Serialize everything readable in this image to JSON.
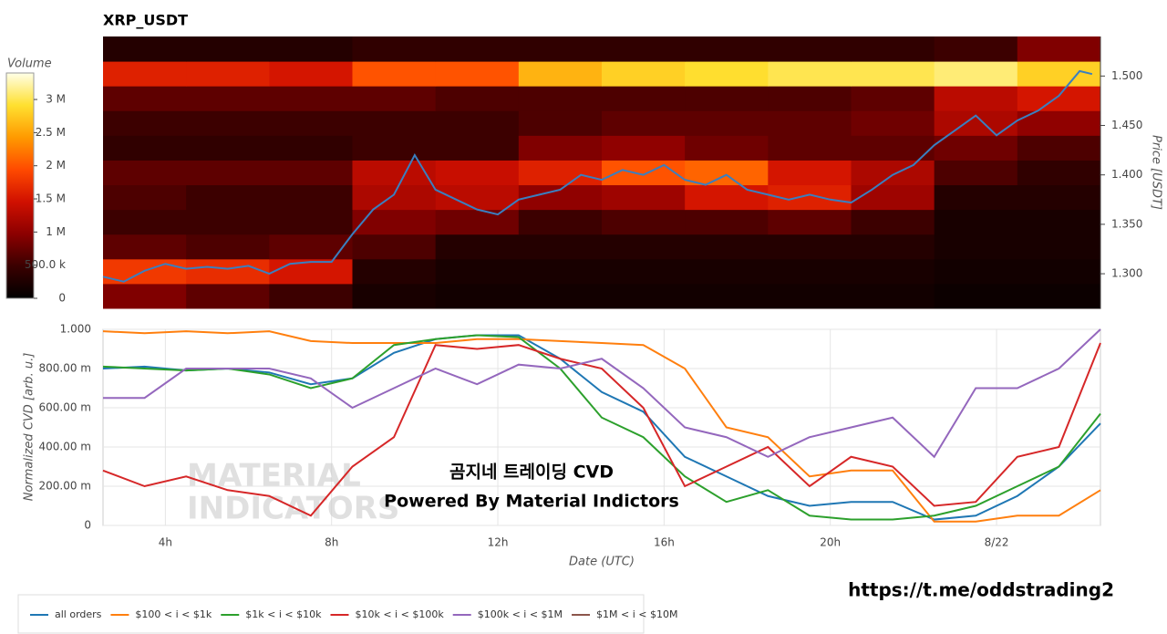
{
  "chart_data": [
    {
      "type": "heatmap",
      "title": "XRP_USDT",
      "ylabel": "Price [USDT]",
      "xlim": [
        2.5,
        26.5
      ],
      "ylim": [
        1.265,
        1.54
      ],
      "yticks": [
        {
          "value": 1.3,
          "label": "1.300"
        },
        {
          "value": 1.35,
          "label": "1.350"
        },
        {
          "value": 1.4,
          "label": "1.400"
        },
        {
          "value": 1.45,
          "label": "1.450"
        },
        {
          "value": 1.5,
          "label": "1.500"
        }
      ],
      "xbins": [
        2.5,
        4.5,
        6.5,
        8.5,
        10.5,
        12.5,
        14.5,
        16.5,
        18.5,
        20.5,
        22.5,
        24.5,
        26.5
      ],
      "ybins": [
        1.265,
        1.29,
        1.315,
        1.34,
        1.365,
        1.39,
        1.415,
        1.44,
        1.465,
        1.49,
        1.515,
        1.54
      ],
      "z": [
        [
          900000,
          700000,
          500000,
          200000,
          150000,
          150000,
          150000,
          150000,
          150000,
          150000,
          100000,
          100000
        ],
        [
          1800000,
          1700000,
          1500000,
          300000,
          200000,
          200000,
          200000,
          200000,
          200000,
          200000,
          150000,
          150000
        ],
        [
          700000,
          600000,
          700000,
          600000,
          300000,
          300000,
          300000,
          300000,
          300000,
          300000,
          200000,
          200000
        ],
        [
          500000,
          500000,
          500000,
          900000,
          800000,
          500000,
          600000,
          600000,
          700000,
          500000,
          200000,
          200000
        ],
        [
          600000,
          500000,
          500000,
          1200000,
          1300000,
          1000000,
          1100000,
          1500000,
          1600000,
          1100000,
          300000,
          300000
        ],
        [
          700000,
          700000,
          700000,
          1300000,
          1400000,
          1600000,
          2000000,
          2100000,
          1500000,
          1200000,
          600000,
          400000
        ],
        [
          400000,
          400000,
          400000,
          500000,
          500000,
          900000,
          1000000,
          800000,
          700000,
          700000,
          800000,
          600000
        ],
        [
          500000,
          500000,
          500000,
          500000,
          500000,
          600000,
          700000,
          700000,
          700000,
          800000,
          1200000,
          1000000
        ],
        [
          700000,
          700000,
          700000,
          700000,
          600000,
          600000,
          600000,
          600000,
          600000,
          700000,
          1300000,
          1500000
        ],
        [
          1600000,
          1600000,
          1500000,
          2000000,
          2000000,
          2600000,
          2800000,
          2900000,
          3000000,
          3000000,
          3100000,
          2800000
        ],
        [
          300000,
          300000,
          300000,
          400000,
          400000,
          400000,
          400000,
          400000,
          400000,
          400000,
          500000,
          900000
        ]
      ],
      "colorbar_title": "Volume",
      "zlim": [
        0,
        3400000
      ],
      "zticks": [
        0,
        {
          "value": 500000,
          "label": "500.0 k"
        },
        {
          "value": 1000000,
          "label": "1 M"
        },
        {
          "value": 1500000,
          "label": "1.5 M"
        },
        {
          "value": 2000000,
          "label": "2 M"
        },
        {
          "value": 2500000,
          "label": "2.5 M"
        },
        {
          "value": 3000000,
          "label": "3 M"
        }
      ],
      "colorscale": [
        "#000000",
        "#3a0000",
        "#8c0000",
        "#d01000",
        "#ff4a00",
        "#ff9a00",
        "#ffe030",
        "#ffffe8"
      ],
      "line": {
        "color": "#3a7fc0",
        "x": [
          2.5,
          3,
          3.5,
          4,
          4.5,
          5,
          5.5,
          6,
          6.5,
          7,
          7.5,
          8,
          8.5,
          9,
          9.5,
          10,
          10.5,
          11,
          11.5,
          12,
          12.5,
          13,
          13.5,
          14,
          14.5,
          15,
          15.5,
          16,
          16.5,
          17,
          17.5,
          18,
          18.5,
          19,
          19.5,
          20,
          20.5,
          21,
          21.5,
          22,
          22.5,
          23,
          23.5,
          24,
          24.5,
          25,
          25.5,
          26,
          26.3
        ],
        "values": [
          1.297,
          1.292,
          1.303,
          1.31,
          1.305,
          1.307,
          1.305,
          1.308,
          1.3,
          1.31,
          1.312,
          1.312,
          1.34,
          1.365,
          1.38,
          1.42,
          1.385,
          1.375,
          1.365,
          1.36,
          1.375,
          1.38,
          1.385,
          1.4,
          1.395,
          1.405,
          1.4,
          1.41,
          1.395,
          1.39,
          1.4,
          1.385,
          1.38,
          1.375,
          1.38,
          1.375,
          1.372,
          1.385,
          1.4,
          1.41,
          1.43,
          1.445,
          1.46,
          1.44,
          1.455,
          1.465,
          1.48,
          1.505,
          1.502
        ]
      }
    },
    {
      "type": "line",
      "xlabel": "Date (UTC)",
      "ylabel": "Normalized CVD [arb. u.]",
      "xlim": [
        2.5,
        26.5
      ],
      "ylim": [
        0,
        1
      ],
      "xticks": [
        {
          "value": 4,
          "label": "4h"
        },
        {
          "value": 8,
          "label": "8h"
        },
        {
          "value": 12,
          "label": "12h"
        },
        {
          "value": 16,
          "label": "16h"
        },
        {
          "value": 20,
          "label": "20h"
        },
        {
          "value": 24,
          "label": "8/22"
        }
      ],
      "yticks": [
        0,
        {
          "value": 0.2,
          "label": "200.00 m"
        },
        {
          "value": 0.4,
          "label": "400.00 m"
        },
        {
          "value": 0.6,
          "label": "600.00 m"
        },
        {
          "value": 0.8,
          "label": "800.00 m"
        },
        {
          "value": 1,
          "label": "1.000"
        }
      ],
      "grid": true,
      "x": [
        2.5,
        3.5,
        4.5,
        5.5,
        6.5,
        7.5,
        8.5,
        9.5,
        10.5,
        11.5,
        12.5,
        13.5,
        14.5,
        15.5,
        16.5,
        17.5,
        18.5,
        19.5,
        20.5,
        21.5,
        22.5,
        23.5,
        24.5,
        25.5,
        26.5
      ],
      "series": [
        {
          "name": "all orders",
          "color": "#1f77b4",
          "values": [
            0.8,
            0.81,
            0.79,
            0.8,
            0.78,
            0.72,
            0.75,
            0.88,
            0.95,
            0.97,
            0.97,
            0.85,
            0.68,
            0.58,
            0.35,
            0.25,
            0.15,
            0.1,
            0.12,
            0.12,
            0.03,
            0.05,
            0.15,
            0.3,
            0.52
          ]
        },
        {
          "name": "$100 < i < $1k",
          "color": "#ff7f0e",
          "values": [
            0.99,
            0.98,
            0.99,
            0.98,
            0.99,
            0.94,
            0.93,
            0.93,
            0.93,
            0.95,
            0.95,
            0.94,
            0.93,
            0.92,
            0.8,
            0.5,
            0.45,
            0.25,
            0.28,
            0.28,
            0.02,
            0.02,
            0.05,
            0.05,
            0.18
          ]
        },
        {
          "name": "$1k < i < $10k",
          "color": "#2ca02c",
          "values": [
            0.81,
            0.8,
            0.79,
            0.8,
            0.77,
            0.7,
            0.75,
            0.92,
            0.95,
            0.97,
            0.96,
            0.8,
            0.55,
            0.45,
            0.25,
            0.12,
            0.18,
            0.05,
            0.03,
            0.03,
            0.05,
            0.1,
            0.2,
            0.3,
            0.57
          ]
        },
        {
          "name": "$10k < i < $100k",
          "color": "#d62728",
          "values": [
            0.28,
            0.2,
            0.25,
            0.18,
            0.15,
            0.05,
            0.3,
            0.45,
            0.92,
            0.9,
            0.92,
            0.85,
            0.8,
            0.6,
            0.2,
            0.3,
            0.4,
            0.2,
            0.35,
            0.3,
            0.1,
            0.12,
            0.35,
            0.4,
            0.93
          ]
        },
        {
          "name": "$100k < i < $1M",
          "color": "#9467bd",
          "values": [
            0.65,
            0.65,
            0.8,
            0.8,
            0.8,
            0.75,
            0.6,
            0.7,
            0.8,
            0.72,
            0.82,
            0.8,
            0.85,
            0.7,
            0.5,
            0.45,
            0.35,
            0.45,
            0.5,
            0.55,
            0.35,
            0.7,
            0.7,
            0.8,
            1
          ]
        },
        {
          "name": "$1M < i < $10M",
          "color": "#8c564b",
          "values": [
            null,
            null,
            null,
            null,
            null,
            null,
            null,
            null,
            null,
            null,
            null,
            null,
            null,
            null,
            null,
            null,
            null,
            null,
            null,
            null,
            null,
            null,
            null,
            null,
            null
          ]
        }
      ],
      "annotations": [
        "곰지네 트레이딩 CVD",
        "Powered By Material Indictors"
      ],
      "watermark": [
        "MATERIAL",
        "INDICATORS"
      ]
    }
  ],
  "footer_link": "https://t.me/oddstrading2"
}
